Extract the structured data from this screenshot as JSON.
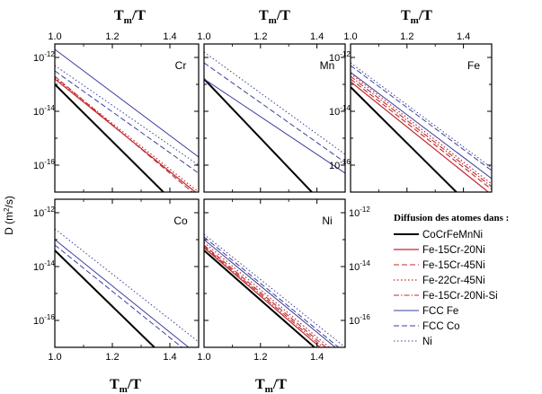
{
  "chart_data": {
    "type": "line",
    "layout": "2x3 small multiples (6th cell holds legend)",
    "shared_xlabel": "Tm/T",
    "shared_ylabel": "D (m²/s)",
    "xlim": [
      1.0,
      1.5
    ],
    "ylim_log10": [
      -17,
      -11.5
    ],
    "y_scale": "log",
    "x_ticks": [
      "1.0",
      "1.2",
      "1.4"
    ],
    "y_ticks": [
      {
        "exp": "-12",
        "value": -12
      },
      {
        "exp": "-14",
        "value": -14
      },
      {
        "exp": "-16",
        "value": -16
      }
    ],
    "legend_title": "Diffusion des atomes dans :",
    "series_styles": [
      {
        "name": "CoCrFeMnNi",
        "color": "#000000",
        "dash": "solid",
        "width": 2.0
      },
      {
        "name": "Fe-15Cr-20Ni",
        "color": "#c0282d",
        "dash": "solid",
        "width": 1.2
      },
      {
        "name": "Fe-15Cr-45Ni",
        "color": "#c0282d",
        "dash": "dashed",
        "width": 1.1
      },
      {
        "name": "Fe-22Cr-45Ni",
        "color": "#c0282d",
        "dash": "dotted",
        "width": 1.2
      },
      {
        "name": "Fe-15Cr-20Ni-Si",
        "color": "#c0282d",
        "dash": "dashdot",
        "width": 1.1
      },
      {
        "name": "FCC Fe",
        "color": "#3a3f9c",
        "dash": "solid",
        "width": 1.0
      },
      {
        "name": "FCC Co",
        "color": "#3a3f9c",
        "dash": "dashed",
        "width": 1.0
      },
      {
        "name": "Ni",
        "color": "#3a3f9c",
        "dash": "dotted",
        "width": 1.0
      }
    ],
    "panels": [
      {
        "element": "Cr",
        "series": [
          {
            "name": "CoCrFeMnNi",
            "x": [
              1.0,
              1.5
            ],
            "log10_y": [
              -13.0,
              -18.3
            ]
          },
          {
            "name": "Fe-15Cr-20Ni",
            "x": [
              1.0,
              1.5
            ],
            "log10_y": [
              -12.8,
              -17.1
            ]
          },
          {
            "name": "Fe-15Cr-45Ni",
            "x": [
              1.0,
              1.5
            ],
            "log10_y": [
              -12.7,
              -17.2
            ]
          },
          {
            "name": "Fe-22Cr-45Ni",
            "x": [
              1.0,
              1.5
            ],
            "log10_y": [
              -12.75,
              -17.0
            ]
          },
          {
            "name": "FCC Fe",
            "x": [
              1.0,
              1.5
            ],
            "log10_y": [
              -11.7,
              -15.7
            ]
          },
          {
            "name": "FCC Co",
            "x": [
              1.0,
              1.5
            ],
            "log10_y": [
              -12.5,
              -16.3
            ]
          },
          {
            "name": "Ni",
            "x": [
              1.0,
              1.5
            ],
            "log10_y": [
              -12.3,
              -16.0
            ]
          }
        ]
      },
      {
        "element": "Mn",
        "series": [
          {
            "name": "CoCrFeMnNi",
            "x": [
              1.0,
              1.5
            ],
            "log10_y": [
              -12.8,
              -18.3
            ]
          },
          {
            "name": "FCC Fe",
            "x": [
              1.0,
              1.5
            ],
            "log10_y": [
              -12.8,
              -16.3
            ]
          },
          {
            "name": "FCC Co",
            "x": [
              1.0,
              1.5
            ],
            "log10_y": [
              -12.2,
              -15.9
            ]
          },
          {
            "name": "Ni",
            "x": [
              1.0,
              1.5
            ],
            "log10_y": [
              -11.8,
              -15.6
            ]
          }
        ]
      },
      {
        "element": "Fe",
        "series": [
          {
            "name": "CoCrFeMnNi",
            "x": [
              1.0,
              1.5
            ],
            "log10_y": [
              -13.1,
              -18.3
            ]
          },
          {
            "name": "Fe-15Cr-20Ni",
            "x": [
              1.0,
              1.5
            ],
            "log10_y": [
              -12.9,
              -17.1
            ]
          },
          {
            "name": "Fe-15Cr-45Ni",
            "x": [
              1.0,
              1.5
            ],
            "log10_y": [
              -12.8,
              -16.9
            ]
          },
          {
            "name": "Fe-22Cr-45Ni",
            "x": [
              1.0,
              1.5
            ],
            "log10_y": [
              -12.6,
              -16.7
            ]
          },
          {
            "name": "Fe-15Cr-20Ni-Si",
            "x": [
              1.0,
              1.5
            ],
            "log10_y": [
              -12.7,
              -16.8
            ]
          },
          {
            "name": "FCC Fe",
            "x": [
              1.0,
              1.5
            ],
            "log10_y": [
              -12.55,
              -16.5
            ]
          },
          {
            "name": "FCC Co",
            "x": [
              1.0,
              1.5
            ],
            "log10_y": [
              -12.3,
              -16.2
            ]
          },
          {
            "name": "Ni",
            "x": [
              1.0,
              1.5
            ],
            "log10_y": [
              -12.2,
              -16.1
            ]
          }
        ]
      },
      {
        "element": "Co",
        "series": [
          {
            "name": "CoCrFeMnNi",
            "x": [
              1.0,
              1.5
            ],
            "log10_y": [
              -13.4,
              -18.6
            ]
          },
          {
            "name": "FCC Fe",
            "x": [
              1.0,
              1.5
            ],
            "log10_y": [
              -13.0,
              -17.3
            ]
          },
          {
            "name": "FCC Co",
            "x": [
              1.0,
              1.5
            ],
            "log10_y": [
              -13.2,
              -17.5
            ]
          },
          {
            "name": "Ni",
            "x": [
              1.0,
              1.5
            ],
            "log10_y": [
              -12.6,
              -16.8
            ]
          }
        ]
      },
      {
        "element": "Ni",
        "series": [
          {
            "name": "CoCrFeMnNi",
            "x": [
              1.0,
              1.5
            ],
            "log10_y": [
              -13.4,
              -18.0
            ]
          },
          {
            "name": "Fe-15Cr-20Ni",
            "x": [
              1.0,
              1.5
            ],
            "log10_y": [
              -13.3,
              -17.8
            ]
          },
          {
            "name": "Fe-15Cr-45Ni",
            "x": [
              1.0,
              1.5
            ],
            "log10_y": [
              -13.2,
              -17.6
            ]
          },
          {
            "name": "Fe-22Cr-45Ni",
            "x": [
              1.0,
              1.5
            ],
            "log10_y": [
              -13.1,
              -17.5
            ]
          },
          {
            "name": "Fe-15Cr-20Ni-Si",
            "x": [
              1.0,
              1.5
            ],
            "log10_y": [
              -13.25,
              -17.7
            ]
          },
          {
            "name": "FCC Fe",
            "x": [
              1.0,
              1.5
            ],
            "log10_y": [
              -13.0,
              -17.3
            ]
          },
          {
            "name": "FCC Co",
            "x": [
              1.0,
              1.5
            ],
            "log10_y": [
              -12.9,
              -17.2
            ]
          },
          {
            "name": "Ni",
            "x": [
              1.0,
              1.5
            ],
            "log10_y": [
              -12.8,
              -17.0
            ]
          }
        ]
      }
    ]
  }
}
